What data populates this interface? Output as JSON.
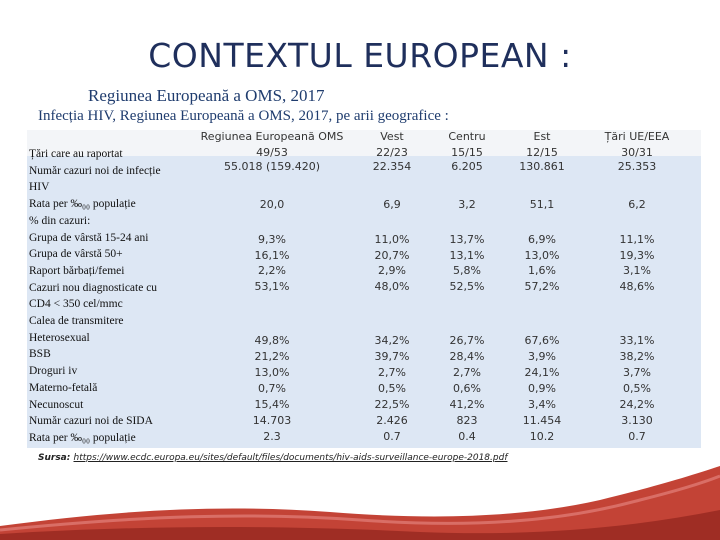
{
  "title": "CONTEXTUL  EUROPEAN :",
  "subtitle1": "Regiunea Europeană a OMS, 2017",
  "subtitle2": "Infecția HIV, Regiunea Europeană a OMS, 2017, pe arii geografice :",
  "table": {
    "headers": [
      "Regiunea Europeană OMS",
      "Vest",
      "Centru",
      "Est",
      "Țări UE/EEA"
    ],
    "row_labels": [
      "Țări care au raportat",
      "Număr cazuri noi de infecție",
      "HIV",
      "Rata per ‰₀₀ populație",
      "% din cazuri:",
      "Grupa de vârstă 15-24 ani",
      "Grupa de vârstă 50+",
      "Raport bărbați/femei",
      "Cazuri nou diagnosticate cu",
      "CD4 < 350 cel/mmc",
      "Calea de transmitere",
      "Heterosexual",
      "BSB",
      "Droguri iv",
      "Materno-fetală",
      "Necunoscut",
      "Număr cazuri noi de SIDA",
      "Rata per  ‰₀₀ populație"
    ],
    "columns": [
      {
        "g1": [
          "49/53",
          "55.018 (159.420)"
        ],
        "g2": [
          "20,0"
        ],
        "g3": [
          "9,3%",
          "16,1%",
          "2,2%",
          "53,1%"
        ],
        "g4": [
          "49,8%",
          "21,2%",
          "13,0%",
          "0,7%",
          "15,4%",
          "14.703",
          "2.3"
        ]
      },
      {
        "g1": [
          "22/23",
          "22.354"
        ],
        "g2": [
          "6,9"
        ],
        "g3": [
          "11,0%",
          "20,7%",
          "2,9%",
          "48,0%"
        ],
        "g4": [
          "34,2%",
          "39,7%",
          "2,7%",
          "0,5%",
          "22,5%",
          "2.426",
          "0.7"
        ]
      },
      {
        "g1": [
          "15/15",
          "6.205"
        ],
        "g2": [
          "3,2"
        ],
        "g3": [
          "13,7%",
          "13,1%",
          "5,8%",
          "52,5%"
        ],
        "g4": [
          "26,7%",
          "28,4%",
          "2,7%",
          "0,6%",
          "41,2%",
          "823",
          "0.4"
        ]
      },
      {
        "g1": [
          "12/15",
          "130.861"
        ],
        "g2": [
          "51,1"
        ],
        "g3": [
          "6,9%",
          "13,0%",
          "1,6%",
          "57,2%"
        ],
        "g4": [
          "67,6%",
          "3,9%",
          "24,1%",
          "0,9%",
          "3,4%",
          "11.454",
          "10.2"
        ]
      },
      {
        "g1": [
          "30/31",
          "25.353"
        ],
        "g2": [
          "6,2"
        ],
        "g3": [
          "11,1%",
          "19,3%",
          "3,1%",
          "48,6%"
        ],
        "g4": [
          "33,1%",
          "38,2%",
          "3,7%",
          "0,5%",
          "24,2%",
          "3.130",
          "0.7"
        ]
      }
    ]
  },
  "source_label": "Sursa: ",
  "source_url": "https://www.ecdc.europa.eu/sites/default/files/documents/hiv-aids-surveillance-europe-2018.pdf",
  "colors": {
    "title": "#1f2f5c",
    "table_bg": "#dde7f4",
    "ribbon": "#c0392b"
  }
}
